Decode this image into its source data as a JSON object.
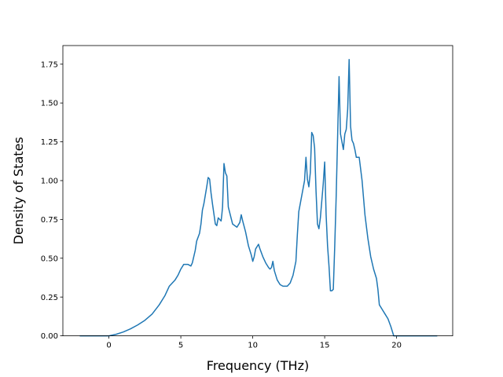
{
  "chart_data": {
    "type": "line",
    "title": "",
    "xlabel": "Frequency (THz)",
    "ylabel": "Density of States",
    "xlim": [
      -3.2,
      23.9
    ],
    "ylim": [
      0.0,
      1.87
    ],
    "x_ticks": [
      0,
      5,
      10,
      15,
      20
    ],
    "x_tick_labels": [
      "0",
      "5",
      "10",
      "15",
      "20"
    ],
    "y_ticks": [
      0.0,
      0.25,
      0.5,
      0.75,
      1.0,
      1.25,
      1.5,
      1.75
    ],
    "y_tick_labels": [
      "0.00",
      "0.25",
      "0.50",
      "0.75",
      "1.00",
      "1.25",
      "1.50",
      "1.75"
    ],
    "grid": false,
    "legend": "none",
    "line_color": "#1f77b4",
    "series": [
      {
        "x": [
          -2.0,
          -0.5,
          0.0,
          0.5,
          1.0,
          1.5,
          2.0,
          2.5,
          3.0,
          3.5,
          3.9,
          4.2,
          4.6,
          4.8,
          5.0,
          5.2,
          5.3,
          5.5,
          5.7,
          5.8,
          6.0,
          6.1,
          6.3,
          6.4,
          6.5,
          6.6,
          6.8,
          6.9,
          7.0,
          7.1,
          7.2,
          7.4,
          7.5,
          7.6,
          7.8,
          7.85,
          7.9,
          8.0,
          8.1,
          8.2,
          8.3,
          8.6,
          8.9,
          9.1,
          9.2,
          9.3,
          9.5,
          9.7,
          9.9,
          10.0,
          10.1,
          10.2,
          10.4,
          10.5,
          10.7,
          10.9,
          11.1,
          11.2,
          11.3,
          11.4,
          11.5,
          11.7,
          11.9,
          12.1,
          12.4,
          12.6,
          12.8,
          13.0,
          13.1,
          13.2,
          13.4,
          13.6,
          13.7,
          13.8,
          13.9,
          14.0,
          14.1,
          14.2,
          14.3,
          14.4,
          14.5,
          14.6,
          14.7,
          14.8,
          14.9,
          15.0,
          15.1,
          15.2,
          15.3,
          15.4,
          15.5,
          15.6,
          15.7,
          15.8,
          16.0,
          16.1,
          16.3,
          16.4,
          16.5,
          16.6,
          16.7,
          16.8,
          16.9,
          17.0,
          17.1,
          17.2,
          17.3,
          17.4,
          17.6,
          17.8,
          18.0,
          18.2,
          18.4,
          18.6,
          18.7,
          18.8,
          19.0,
          19.2,
          19.4,
          19.6,
          19.8,
          20.0,
          20.2,
          20.5,
          20.7,
          21.0,
          22.8
        ],
        "y": [
          0.0,
          0.0,
          0.0,
          0.01,
          0.025,
          0.045,
          0.07,
          0.1,
          0.14,
          0.2,
          0.26,
          0.32,
          0.36,
          0.39,
          0.43,
          0.46,
          0.46,
          0.46,
          0.45,
          0.47,
          0.55,
          0.61,
          0.66,
          0.72,
          0.81,
          0.85,
          0.96,
          1.02,
          1.01,
          0.92,
          0.85,
          0.72,
          0.71,
          0.76,
          0.74,
          0.78,
          0.83,
          1.11,
          1.05,
          1.03,
          0.83,
          0.72,
          0.7,
          0.73,
          0.78,
          0.74,
          0.67,
          0.58,
          0.52,
          0.48,
          0.51,
          0.56,
          0.59,
          0.56,
          0.51,
          0.47,
          0.44,
          0.43,
          0.44,
          0.48,
          0.42,
          0.36,
          0.33,
          0.32,
          0.32,
          0.34,
          0.39,
          0.48,
          0.65,
          0.8,
          0.9,
          1.0,
          1.15,
          1.01,
          0.96,
          1.05,
          1.31,
          1.29,
          1.21,
          0.93,
          0.72,
          0.69,
          0.76,
          0.87,
          0.98,
          1.12,
          0.78,
          0.58,
          0.45,
          0.29,
          0.29,
          0.3,
          0.58,
          0.9,
          1.67,
          1.3,
          1.2,
          1.3,
          1.33,
          1.46,
          1.78,
          1.35,
          1.26,
          1.24,
          1.2,
          1.15,
          1.15,
          1.15,
          1.0,
          0.78,
          0.63,
          0.51,
          0.43,
          0.37,
          0.3,
          0.2,
          0.17,
          0.14,
          0.11,
          0.06,
          0.0,
          0.0,
          0.0,
          0.0,
          0.0,
          0.0,
          0.0
        ]
      }
    ]
  }
}
